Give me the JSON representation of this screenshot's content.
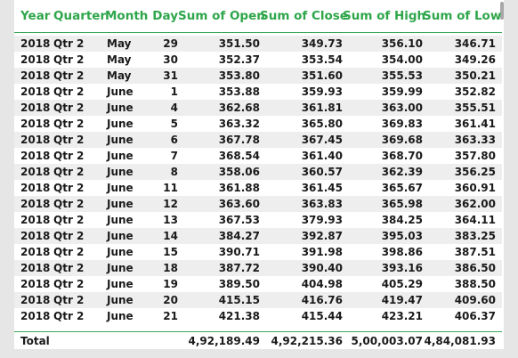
{
  "table": {
    "headers": {
      "year": "Year",
      "quarter": "Quarter",
      "month": "Month",
      "day": "Day",
      "open": "Sum of Open",
      "close": "Sum of Close",
      "high": "Sum of High",
      "low": "Sum of Low"
    },
    "rows": [
      {
        "year": "2018",
        "quarter": "Qtr 2",
        "month": "May",
        "day": "29",
        "open": "351.50",
        "close": "349.73",
        "high": "356.10",
        "low": "346.71"
      },
      {
        "year": "2018",
        "quarter": "Qtr 2",
        "month": "May",
        "day": "30",
        "open": "352.37",
        "close": "353.54",
        "high": "354.00",
        "low": "349.26"
      },
      {
        "year": "2018",
        "quarter": "Qtr 2",
        "month": "May",
        "day": "31",
        "open": "353.80",
        "close": "351.60",
        "high": "355.53",
        "low": "350.21"
      },
      {
        "year": "2018",
        "quarter": "Qtr 2",
        "month": "June",
        "day": "1",
        "open": "353.88",
        "close": "359.93",
        "high": "359.99",
        "low": "352.82"
      },
      {
        "year": "2018",
        "quarter": "Qtr 2",
        "month": "June",
        "day": "4",
        "open": "362.68",
        "close": "361.81",
        "high": "363.00",
        "low": "355.51"
      },
      {
        "year": "2018",
        "quarter": "Qtr 2",
        "month": "June",
        "day": "5",
        "open": "363.32",
        "close": "365.80",
        "high": "369.83",
        "low": "361.41"
      },
      {
        "year": "2018",
        "quarter": "Qtr 2",
        "month": "June",
        "day": "6",
        "open": "367.78",
        "close": "367.45",
        "high": "369.68",
        "low": "363.33"
      },
      {
        "year": "2018",
        "quarter": "Qtr 2",
        "month": "June",
        "day": "7",
        "open": "368.54",
        "close": "361.40",
        "high": "368.70",
        "low": "357.80"
      },
      {
        "year": "2018",
        "quarter": "Qtr 2",
        "month": "June",
        "day": "8",
        "open": "358.06",
        "close": "360.57",
        "high": "362.39",
        "low": "356.25"
      },
      {
        "year": "2018",
        "quarter": "Qtr 2",
        "month": "June",
        "day": "11",
        "open": "361.88",
        "close": "361.45",
        "high": "365.67",
        "low": "360.91"
      },
      {
        "year": "2018",
        "quarter": "Qtr 2",
        "month": "June",
        "day": "12",
        "open": "363.60",
        "close": "363.83",
        "high": "365.98",
        "low": "362.00"
      },
      {
        "year": "2018",
        "quarter": "Qtr 2",
        "month": "June",
        "day": "13",
        "open": "367.53",
        "close": "379.93",
        "high": "384.25",
        "low": "364.11"
      },
      {
        "year": "2018",
        "quarter": "Qtr 2",
        "month": "June",
        "day": "14",
        "open": "384.27",
        "close": "392.87",
        "high": "395.03",
        "low": "383.25"
      },
      {
        "year": "2018",
        "quarter": "Qtr 2",
        "month": "June",
        "day": "15",
        "open": "390.71",
        "close": "391.98",
        "high": "398.86",
        "low": "387.51"
      },
      {
        "year": "2018",
        "quarter": "Qtr 2",
        "month": "June",
        "day": "18",
        "open": "387.72",
        "close": "390.40",
        "high": "393.16",
        "low": "386.50"
      },
      {
        "year": "2018",
        "quarter": "Qtr 2",
        "month": "June",
        "day": "19",
        "open": "389.50",
        "close": "404.98",
        "high": "405.29",
        "low": "388.50"
      },
      {
        "year": "2018",
        "quarter": "Qtr 2",
        "month": "June",
        "day": "20",
        "open": "415.15",
        "close": "416.76",
        "high": "419.47",
        "low": "409.60"
      },
      {
        "year": "2018",
        "quarter": "Qtr 2",
        "month": "June",
        "day": "21",
        "open": "421.38",
        "close": "415.44",
        "high": "423.21",
        "low": "406.37"
      }
    ],
    "total": {
      "label": "Total",
      "open": "4,92,189.49",
      "close": "4,92,215.36",
      "high": "5,00,003.07",
      "low": "4,84,081.93"
    }
  },
  "colors": {
    "header_text": "#2ea64a",
    "divider": "#3aa85a",
    "stripe": "#eeeeee",
    "background": "#e6e6e6"
  }
}
